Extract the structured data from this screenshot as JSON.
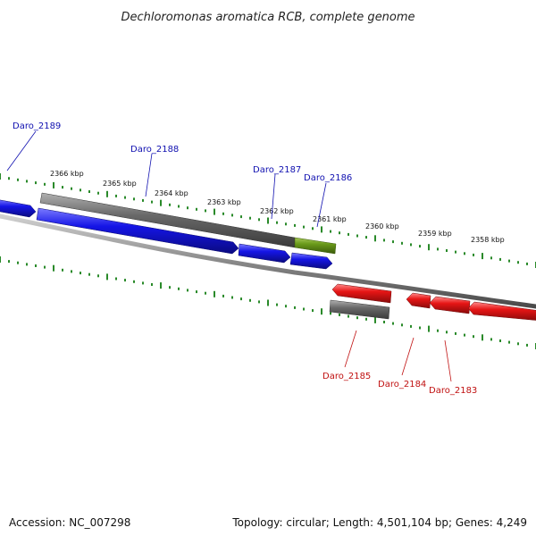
{
  "title": "Dechloromonas aromatica RCB, complete genome",
  "footer": {
    "accession": "Accession: NC_007298",
    "summary": "Topology: circular; Length: 4,501,104 bp; Genes: 4,249"
  },
  "colors": {
    "forward_gene": "#1515e6",
    "reverse_gene": "#e61515",
    "cds_grey": "#666666",
    "highlight": "#6a9a1a",
    "tick": "#2a8a2a",
    "backbone": "#8a8a8a",
    "forward_label": "#1010b0",
    "reverse_label": "#c01010"
  },
  "scale_labels": [
    "2366 kbp",
    "2365 kbp",
    "2364 kbp",
    "2363 kbp",
    "2362 kbp",
    "2361 kbp",
    "2360 kbp",
    "2359 kbp",
    "2358 kbp"
  ],
  "genes": [
    {
      "id": "Daro_2189",
      "strand": "forward"
    },
    {
      "id": "Daro_2188",
      "strand": "forward"
    },
    {
      "id": "Daro_2187",
      "strand": "forward"
    },
    {
      "id": "Daro_2186",
      "strand": "forward"
    },
    {
      "id": "Daro_2185",
      "strand": "reverse"
    },
    {
      "id": "Daro_2184",
      "strand": "reverse"
    },
    {
      "id": "Daro_2183",
      "strand": "reverse"
    }
  ]
}
